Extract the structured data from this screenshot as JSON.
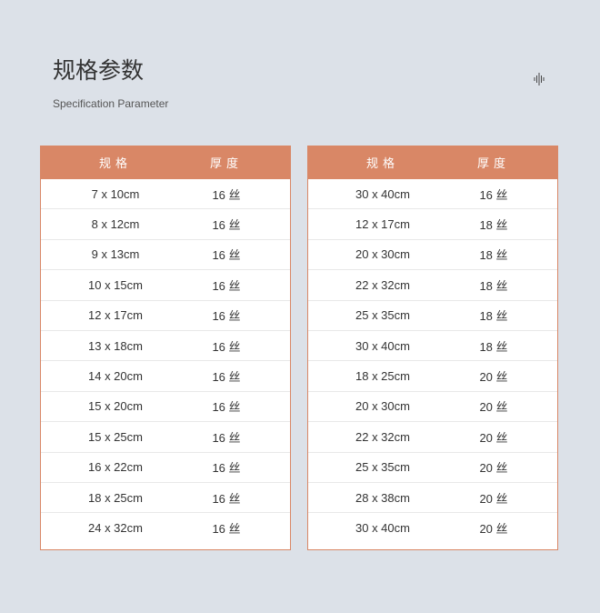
{
  "title": "规格参数",
  "subtitle": "Specification Parameter",
  "icon": "sound-wave-icon",
  "colors": {
    "header": "#D98766",
    "background": "#DCE1E8"
  },
  "tables": [
    {
      "headers": [
        "规格",
        "厚度"
      ],
      "rows": [
        [
          "7 x 10cm",
          "16 丝"
        ],
        [
          "8 x 12cm",
          "16 丝"
        ],
        [
          "9 x 13cm",
          "16 丝"
        ],
        [
          "10 x 15cm",
          "16 丝"
        ],
        [
          "12 x 17cm",
          "16 丝"
        ],
        [
          "13 x 18cm",
          "16 丝"
        ],
        [
          "14 x 20cm",
          "16 丝"
        ],
        [
          "15 x 20cm",
          "16 丝"
        ],
        [
          "15 x 25cm",
          "16 丝"
        ],
        [
          "16 x 22cm",
          "16 丝"
        ],
        [
          "18 x 25cm",
          "16 丝"
        ],
        [
          "24 x 32cm",
          "16 丝"
        ]
      ]
    },
    {
      "headers": [
        "规格",
        "厚度"
      ],
      "rows": [
        [
          "30 x 40cm",
          "16 丝"
        ],
        [
          "12 x 17cm",
          "18 丝"
        ],
        [
          "20 x 30cm",
          "18 丝"
        ],
        [
          "22 x 32cm",
          "18 丝"
        ],
        [
          "25 x 35cm",
          "18 丝"
        ],
        [
          "30 x 40cm",
          "18 丝"
        ],
        [
          "18 x 25cm",
          "20 丝"
        ],
        [
          "20 x 30cm",
          "20 丝"
        ],
        [
          "22 x 32cm",
          "20 丝"
        ],
        [
          "25 x 35cm",
          "20 丝"
        ],
        [
          "28 x 38cm",
          "20 丝"
        ],
        [
          "30 x 40cm",
          "20 丝"
        ]
      ]
    }
  ]
}
